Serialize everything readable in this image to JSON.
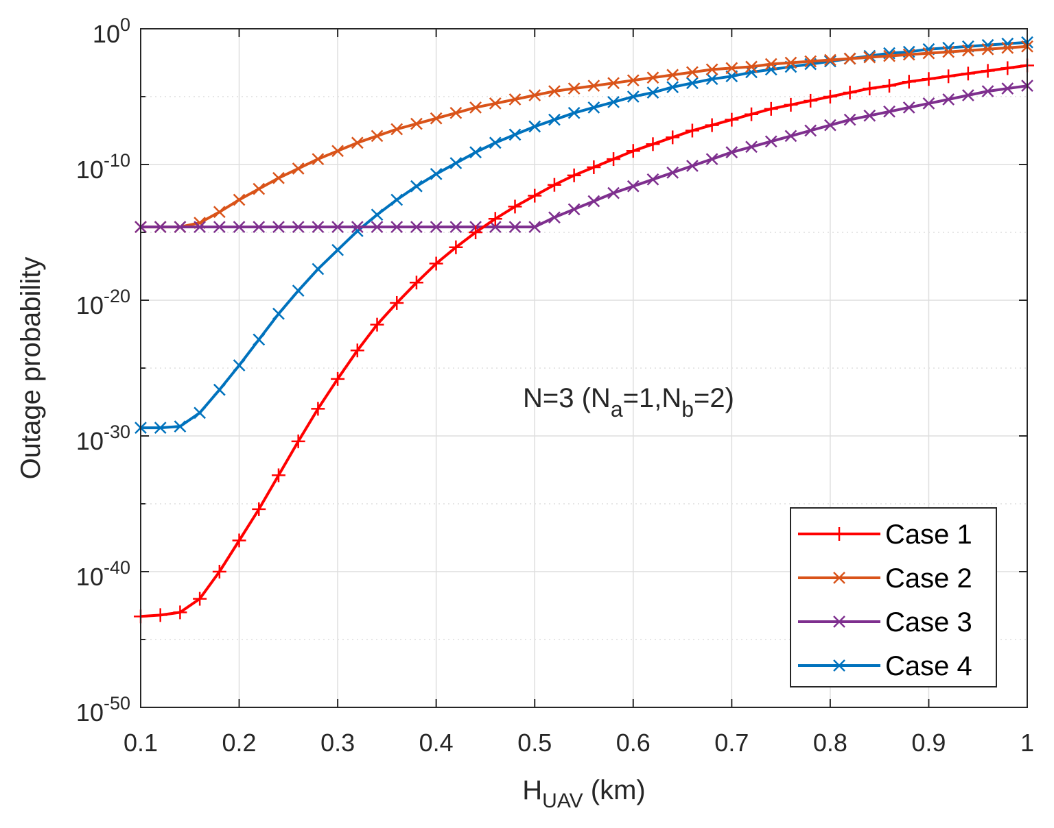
{
  "chart_data": {
    "type": "line",
    "title": "",
    "xlabel": {
      "main": "H",
      "sub": "UAV",
      "unit": " (km)"
    },
    "ylabel": "Outage probability",
    "x_scale": "linear",
    "y_scale": "log",
    "xlim": [
      0.1,
      1
    ],
    "ylim_exponent": [
      -50,
      0
    ],
    "grid": true,
    "x_ticks": [
      0.1,
      0.2,
      0.3,
      0.4,
      0.5,
      0.6,
      0.7,
      0.8,
      0.9,
      1
    ],
    "x_tick_labels": [
      "0.1",
      "0.2",
      "0.3",
      "0.4",
      "0.5",
      "0.6",
      "0.7",
      "0.8",
      "0.9",
      "1"
    ],
    "y_ticks_exponent": [
      0,
      -10,
      -20,
      -30,
      -40,
      -50
    ],
    "y_tick_labels": [
      {
        "base": "10",
        "exp": "0"
      },
      {
        "base": "10",
        "exp": "-10"
      },
      {
        "base": "10",
        "exp": "-20"
      },
      {
        "base": "10",
        "exp": "-30"
      },
      {
        "base": "10",
        "exp": "-40"
      },
      {
        "base": "10",
        "exp": "-50"
      }
    ],
    "annotation": {
      "parts": [
        {
          "text": "N=3 (N",
          "sub": false
        },
        {
          "text": "a",
          "sub": true
        },
        {
          "text": "=1,N",
          "sub": false
        },
        {
          "text": "b",
          "sub": true
        },
        {
          "text": "=2)",
          "sub": false
        }
      ]
    },
    "legend_position": "bottom-right",
    "x": [
      0.1,
      0.12,
      0.14,
      0.16,
      0.18,
      0.2,
      0.22,
      0.24,
      0.26,
      0.28,
      0.3,
      0.32,
      0.34,
      0.36,
      0.38,
      0.4,
      0.42,
      0.44,
      0.46,
      0.48,
      0.5,
      0.52,
      0.54,
      0.56,
      0.58,
      0.6,
      0.62,
      0.64,
      0.66,
      0.68,
      0.7,
      0.72,
      0.74,
      0.76,
      0.78,
      0.8,
      0.82,
      0.84,
      0.86,
      0.88,
      0.9,
      0.92,
      0.94,
      0.96,
      0.98,
      1.0
    ],
    "series": [
      {
        "name": "Case 1",
        "color": "#ff0000",
        "marker": "plus",
        "log10_values": [
          -43.3,
          -43.2,
          -43.0,
          -42.0,
          -40.0,
          -37.7,
          -35.4,
          -32.9,
          -30.4,
          -28.0,
          -25.8,
          -23.7,
          -21.8,
          -20.2,
          -18.7,
          -17.3,
          -16.1,
          -15.0,
          -14.0,
          -13.1,
          -12.3,
          -11.5,
          -10.8,
          -10.2,
          -9.6,
          -9.0,
          -8.5,
          -8.0,
          -7.5,
          -7.1,
          -6.7,
          -6.3,
          -5.9,
          -5.6,
          -5.3,
          -5.0,
          -4.7,
          -4.4,
          -4.2,
          -3.9,
          -3.7,
          -3.5,
          -3.3,
          -3.1,
          -2.9,
          -2.7
        ]
      },
      {
        "name": "Case 2",
        "color": "#d95319",
        "marker": "x",
        "log10_values": [
          -14.6,
          -14.6,
          -14.6,
          -14.3,
          -13.5,
          -12.6,
          -11.8,
          -11.0,
          -10.3,
          -9.6,
          -9.0,
          -8.4,
          -7.9,
          -7.4,
          -7.0,
          -6.6,
          -6.2,
          -5.8,
          -5.5,
          -5.2,
          -4.9,
          -4.6,
          -4.4,
          -4.2,
          -4.0,
          -3.8,
          -3.6,
          -3.4,
          -3.2,
          -3.0,
          -2.9,
          -2.8,
          -2.6,
          -2.5,
          -2.4,
          -2.3,
          -2.2,
          -2.1,
          -2.0,
          -1.9,
          -1.8,
          -1.7,
          -1.6,
          -1.5,
          -1.4,
          -1.3
        ]
      },
      {
        "name": "Case 3",
        "color": "#7e2f8e",
        "marker": "x",
        "log10_values": [
          -14.6,
          -14.6,
          -14.6,
          -14.6,
          -14.6,
          -14.6,
          -14.6,
          -14.6,
          -14.6,
          -14.6,
          -14.6,
          -14.6,
          -14.6,
          -14.6,
          -14.6,
          -14.6,
          -14.6,
          -14.6,
          -14.6,
          -14.6,
          -14.6,
          -13.9,
          -13.3,
          -12.7,
          -12.1,
          -11.6,
          -11.1,
          -10.6,
          -10.1,
          -9.6,
          -9.1,
          -8.7,
          -8.3,
          -7.9,
          -7.5,
          -7.1,
          -6.7,
          -6.4,
          -6.1,
          -5.8,
          -5.5,
          -5.2,
          -4.9,
          -4.6,
          -4.4,
          -4.2
        ]
      },
      {
        "name": "Case 4",
        "color": "#0072bd",
        "marker": "x",
        "log10_values": [
          -29.4,
          -29.4,
          -29.3,
          -28.3,
          -26.6,
          -24.8,
          -22.9,
          -21.0,
          -19.3,
          -17.7,
          -16.3,
          -14.9,
          -13.7,
          -12.6,
          -11.6,
          -10.7,
          -9.9,
          -9.1,
          -8.4,
          -7.8,
          -7.2,
          -6.7,
          -6.2,
          -5.8,
          -5.4,
          -5.0,
          -4.7,
          -4.3,
          -4.0,
          -3.7,
          -3.5,
          -3.2,
          -3.0,
          -2.8,
          -2.6,
          -2.4,
          -2.2,
          -2.0,
          -1.8,
          -1.7,
          -1.5,
          -1.4,
          -1.3,
          -1.2,
          -1.1,
          -1.0
        ]
      }
    ]
  }
}
